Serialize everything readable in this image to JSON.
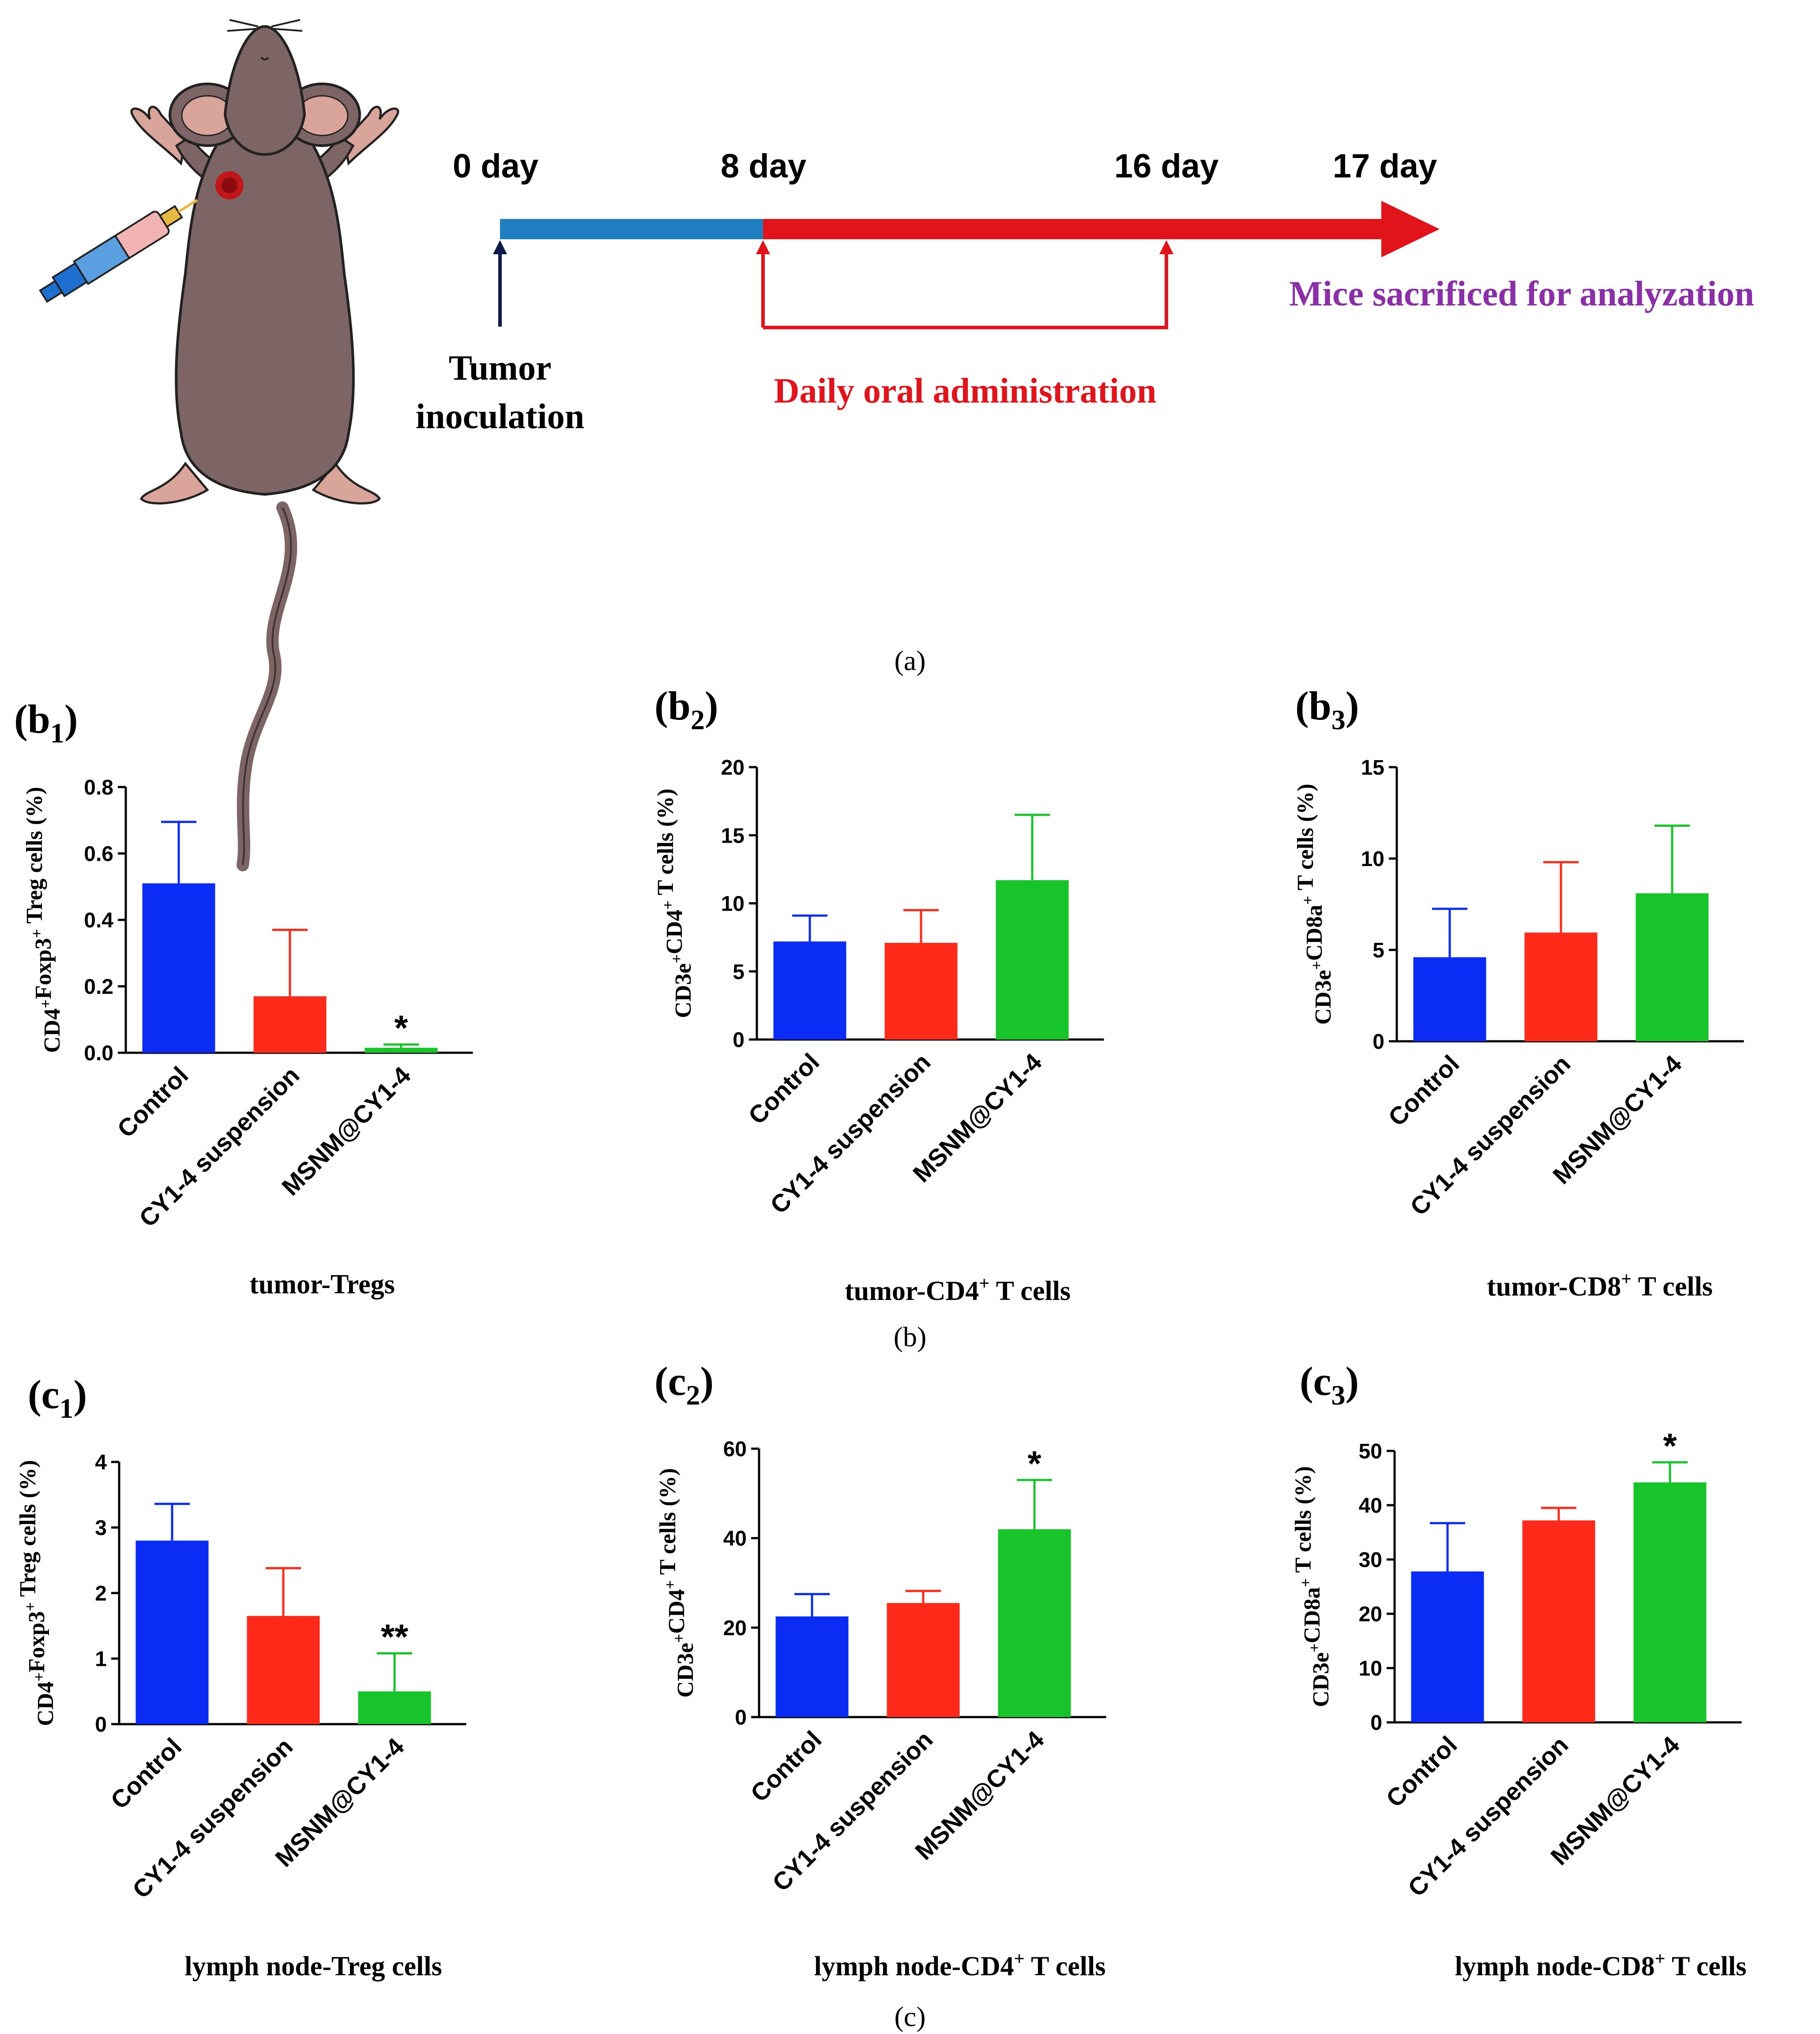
{
  "panel_a": {
    "caption": "(a)",
    "day_labels": [
      "0 day",
      "8 day",
      "16 day",
      "17 day"
    ],
    "tumor_label_line1": "Tumor",
    "tumor_label_line2": "inoculation",
    "daily_label": "Daily oral administration",
    "sacrifice_label": "Mice sacrificed for analyzation",
    "colors": {
      "blue_bar": "#1f7fc0",
      "red_bar": "#e1141b",
      "purple": "#8a2fa8",
      "mouse": "#7d6566",
      "ear": "#d9a49a",
      "tumor": "#c0171b"
    }
  },
  "captions": {
    "b": "(b)",
    "c": "(c)"
  },
  "chart_data": [
    {
      "type": "bar",
      "panel_label": "b",
      "panel_sub": "1",
      "title": "tumor-Tregs",
      "ylabel": "CD4+Foxp3+ Treg cells (%)",
      "ylabel_parts": [
        [
          "CD4",
          "+"
        ],
        [
          "Foxp3",
          "+"
        ],
        [
          " Treg cells (%)",
          ""
        ]
      ],
      "categories": [
        "Control",
        "CY1-4 suspension",
        "MSNM@CY1-4"
      ],
      "values": [
        0.51,
        0.17,
        0.015
      ],
      "errors": [
        0.185,
        0.2,
        0.01
      ],
      "significance": [
        "",
        "",
        "*"
      ],
      "colors": [
        "#0a2cf5",
        "#ff2a1a",
        "#17c42a"
      ],
      "ylim": [
        0,
        0.8
      ],
      "yticks": [
        "0.0",
        "0.2",
        "0.4",
        "0.6",
        "0.8"
      ],
      "ytick_values": [
        0,
        0.2,
        0.4,
        0.6,
        0.8
      ]
    },
    {
      "type": "bar",
      "panel_label": "b",
      "panel_sub": "2",
      "title": "tumor-CD4+ T cells",
      "title_parts": [
        "tumor-CD4",
        "+",
        " T cells"
      ],
      "ylabel": "CD3e+CD4+ T cells (%)",
      "ylabel_parts": [
        [
          "CD3e",
          "+"
        ],
        [
          "CD4",
          "+"
        ],
        [
          " T cells (%)",
          ""
        ]
      ],
      "categories": [
        "Control",
        "CY1-4 suspension",
        "MSNM@CY1-4"
      ],
      "values": [
        7.2,
        7.1,
        11.7
      ],
      "errors": [
        1.9,
        2.4,
        4.8
      ],
      "significance": [
        "",
        "",
        ""
      ],
      "colors": [
        "#0a2cf5",
        "#ff2a1a",
        "#17c42a"
      ],
      "ylim": [
        0,
        20
      ],
      "yticks": [
        "0",
        "5",
        "10",
        "15",
        "20"
      ],
      "ytick_values": [
        0,
        5,
        10,
        15,
        20
      ]
    },
    {
      "type": "bar",
      "panel_label": "b",
      "panel_sub": "3",
      "title": "tumor-CD8+ T cells",
      "title_parts": [
        "tumor-CD8",
        "+",
        " T cells"
      ],
      "ylabel": "CD3e+CD8a+ T cells (%)",
      "ylabel_parts": [
        [
          "CD3e",
          "+"
        ],
        [
          "CD8a",
          "+"
        ],
        [
          " T cells (%)",
          ""
        ]
      ],
      "categories": [
        "Control",
        "CY1-4 suspension",
        "MSNM@CY1-4"
      ],
      "values": [
        4.6,
        5.95,
        8.1
      ],
      "errors": [
        2.65,
        3.85,
        3.7
      ],
      "significance": [
        "",
        "",
        ""
      ],
      "colors": [
        "#0a2cf5",
        "#ff2a1a",
        "#17c42a"
      ],
      "ylim": [
        0,
        15
      ],
      "yticks": [
        "0",
        "5",
        "10",
        "15"
      ],
      "ytick_values": [
        0,
        5,
        10,
        15
      ]
    },
    {
      "type": "bar",
      "panel_label": "c",
      "panel_sub": "1",
      "title": "lymph node-Treg cells",
      "ylabel": "CD4+Foxp3+ Treg cells (%)",
      "ylabel_parts": [
        [
          "CD4",
          "+"
        ],
        [
          "Foxp3",
          "+"
        ],
        [
          " Treg cells (%)",
          ""
        ]
      ],
      "categories": [
        "Control",
        "CY1-4 suspension",
        "MSNM@CY1-4"
      ],
      "values": [
        2.8,
        1.65,
        0.5
      ],
      "errors": [
        0.56,
        0.73,
        0.58
      ],
      "significance": [
        "",
        "",
        "**"
      ],
      "colors": [
        "#0a2cf5",
        "#ff2a1a",
        "#17c42a"
      ],
      "ylim": [
        0,
        4
      ],
      "yticks": [
        "0",
        "1",
        "2",
        "3",
        "4"
      ],
      "ytick_values": [
        0,
        1,
        2,
        3,
        4
      ]
    },
    {
      "type": "bar",
      "panel_label": "c",
      "panel_sub": "2",
      "title": "lymph node-CD4+ T cells",
      "title_parts": [
        "lymph node-CD4",
        "+",
        " T cells"
      ],
      "ylabel": "CD3e+CD4+ T cells (%)",
      "ylabel_parts": [
        [
          "CD3e",
          "+"
        ],
        [
          "CD4",
          "+"
        ],
        [
          " T cells (%)",
          ""
        ]
      ],
      "categories": [
        "Control",
        "CY1-4 suspension",
        "MSNM@CY1-4"
      ],
      "values": [
        22.5,
        25.5,
        42
      ],
      "errors": [
        5,
        2.7,
        11
      ],
      "significance": [
        "",
        "",
        "*"
      ],
      "colors": [
        "#0a2cf5",
        "#ff2a1a",
        "#17c42a"
      ],
      "ylim": [
        0,
        60
      ],
      "yticks": [
        "0",
        "20",
        "40",
        "60"
      ],
      "ytick_values": [
        0,
        20,
        40,
        60
      ]
    },
    {
      "type": "bar",
      "panel_label": "c",
      "panel_sub": "3",
      "title": "lymph node-CD8+ T cells",
      "title_parts": [
        "lymph node-CD8",
        "+",
        " T cells"
      ],
      "ylabel": "CD3e+CD8a+ T cells (%)",
      "ylabel_parts": [
        [
          "CD3e",
          "+"
        ],
        [
          "CD8a",
          "+"
        ],
        [
          " T cells (%)",
          ""
        ]
      ],
      "categories": [
        "Control",
        "CY1-4 suspension",
        "MSNM@CY1-4"
      ],
      "values": [
        27.8,
        37.2,
        44.2
      ],
      "errors": [
        8.9,
        2.3,
        3.7
      ],
      "significance": [
        "",
        "",
        "*"
      ],
      "colors": [
        "#0a2cf5",
        "#ff2a1a",
        "#17c42a"
      ],
      "ylim": [
        0,
        50
      ],
      "yticks": [
        "0",
        "10",
        "20",
        "30",
        "40",
        "50"
      ],
      "ytick_values": [
        0,
        10,
        20,
        30,
        40,
        50
      ]
    }
  ]
}
